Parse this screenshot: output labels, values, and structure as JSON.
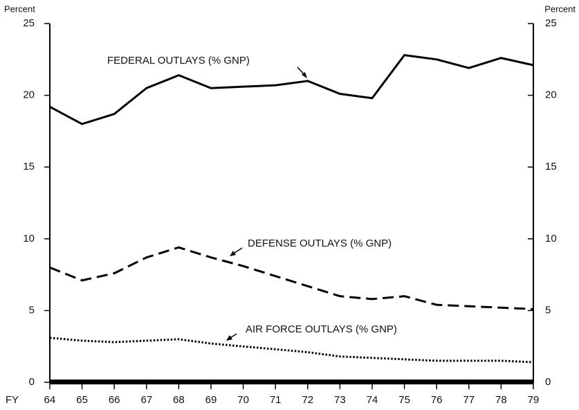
{
  "chart_data": {
    "type": "line",
    "y_label": "Percent",
    "y2_label": "Percent",
    "x_label": "FY",
    "categories": [
      "64",
      "65",
      "66",
      "67",
      "68",
      "69",
      "70",
      "71",
      "72",
      "73",
      "74",
      "75",
      "76",
      "77",
      "78",
      "79"
    ],
    "series": [
      {
        "name": "FEDERAL OUTLAYS (% GNP)",
        "color": "#000000",
        "dash": "solid",
        "values": [
          19.2,
          18.0,
          18.7,
          20.5,
          21.4,
          20.5,
          20.6,
          20.7,
          21.0,
          20.1,
          19.8,
          22.8,
          22.5,
          21.9,
          22.6,
          22.1
        ]
      },
      {
        "name": "DEFENSE OUTLAYS (% GNP)",
        "color": "#000000",
        "dash": "dashed",
        "values": [
          8.0,
          7.1,
          7.6,
          8.7,
          9.4,
          8.7,
          8.1,
          7.4,
          6.7,
          6.0,
          5.8,
          6.0,
          5.4,
          5.3,
          5.2,
          5.1
        ]
      },
      {
        "name": "AIR FORCE OUTLAYS (% GNP)",
        "color": "#000000",
        "dash": "dotted",
        "values": [
          3.1,
          2.9,
          2.8,
          2.9,
          3.0,
          2.7,
          2.5,
          2.3,
          2.1,
          1.8,
          1.7,
          1.6,
          1.5,
          1.5,
          1.5,
          1.4
        ]
      }
    ],
    "ylim": [
      0,
      25
    ],
    "yticks": [
      0,
      5,
      10,
      15,
      20,
      25
    ],
    "y2lim": [
      0,
      25
    ],
    "y2ticks": [
      0,
      5,
      10,
      15,
      20,
      25
    ]
  }
}
